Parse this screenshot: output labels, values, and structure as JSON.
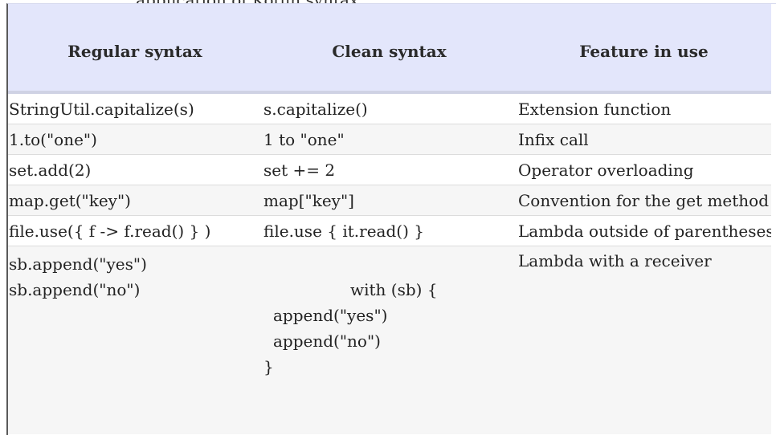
{
  "header_fragment": "...application of Kotlin syntax",
  "columns": [
    "Regular syntax",
    "Clean syntax",
    "Feature in use"
  ],
  "rows": [
    {
      "regular": "StringUtil.capitalize(s)",
      "clean": "s.capitalize()",
      "feature": "Extension function"
    },
    {
      "regular": "1.to(\"one\")",
      "clean": "1 to \"one\"",
      "feature": "Infix call"
    },
    {
      "regular": "set.add(2)",
      "clean": "set += 2",
      "feature": "Operator overloading"
    },
    {
      "regular": "map.get(\"key\")",
      "clean": "map[\"key\"]",
      "feature": "Convention for the get method"
    },
    {
      "regular": "file.use({ f -> f.read() } )",
      "clean": "file.use { it.read() }",
      "feature": "Lambda outside of parentheses"
    }
  ],
  "last_row": {
    "regular_lines": [
      "sb.append(\"yes\")",
      "sb.append(\"no\")"
    ],
    "clean_lines": [
      "with (sb) {",
      "append(\"yes\")",
      "append(\"no\")",
      "}"
    ],
    "feature": "Lambda with a receiver"
  }
}
